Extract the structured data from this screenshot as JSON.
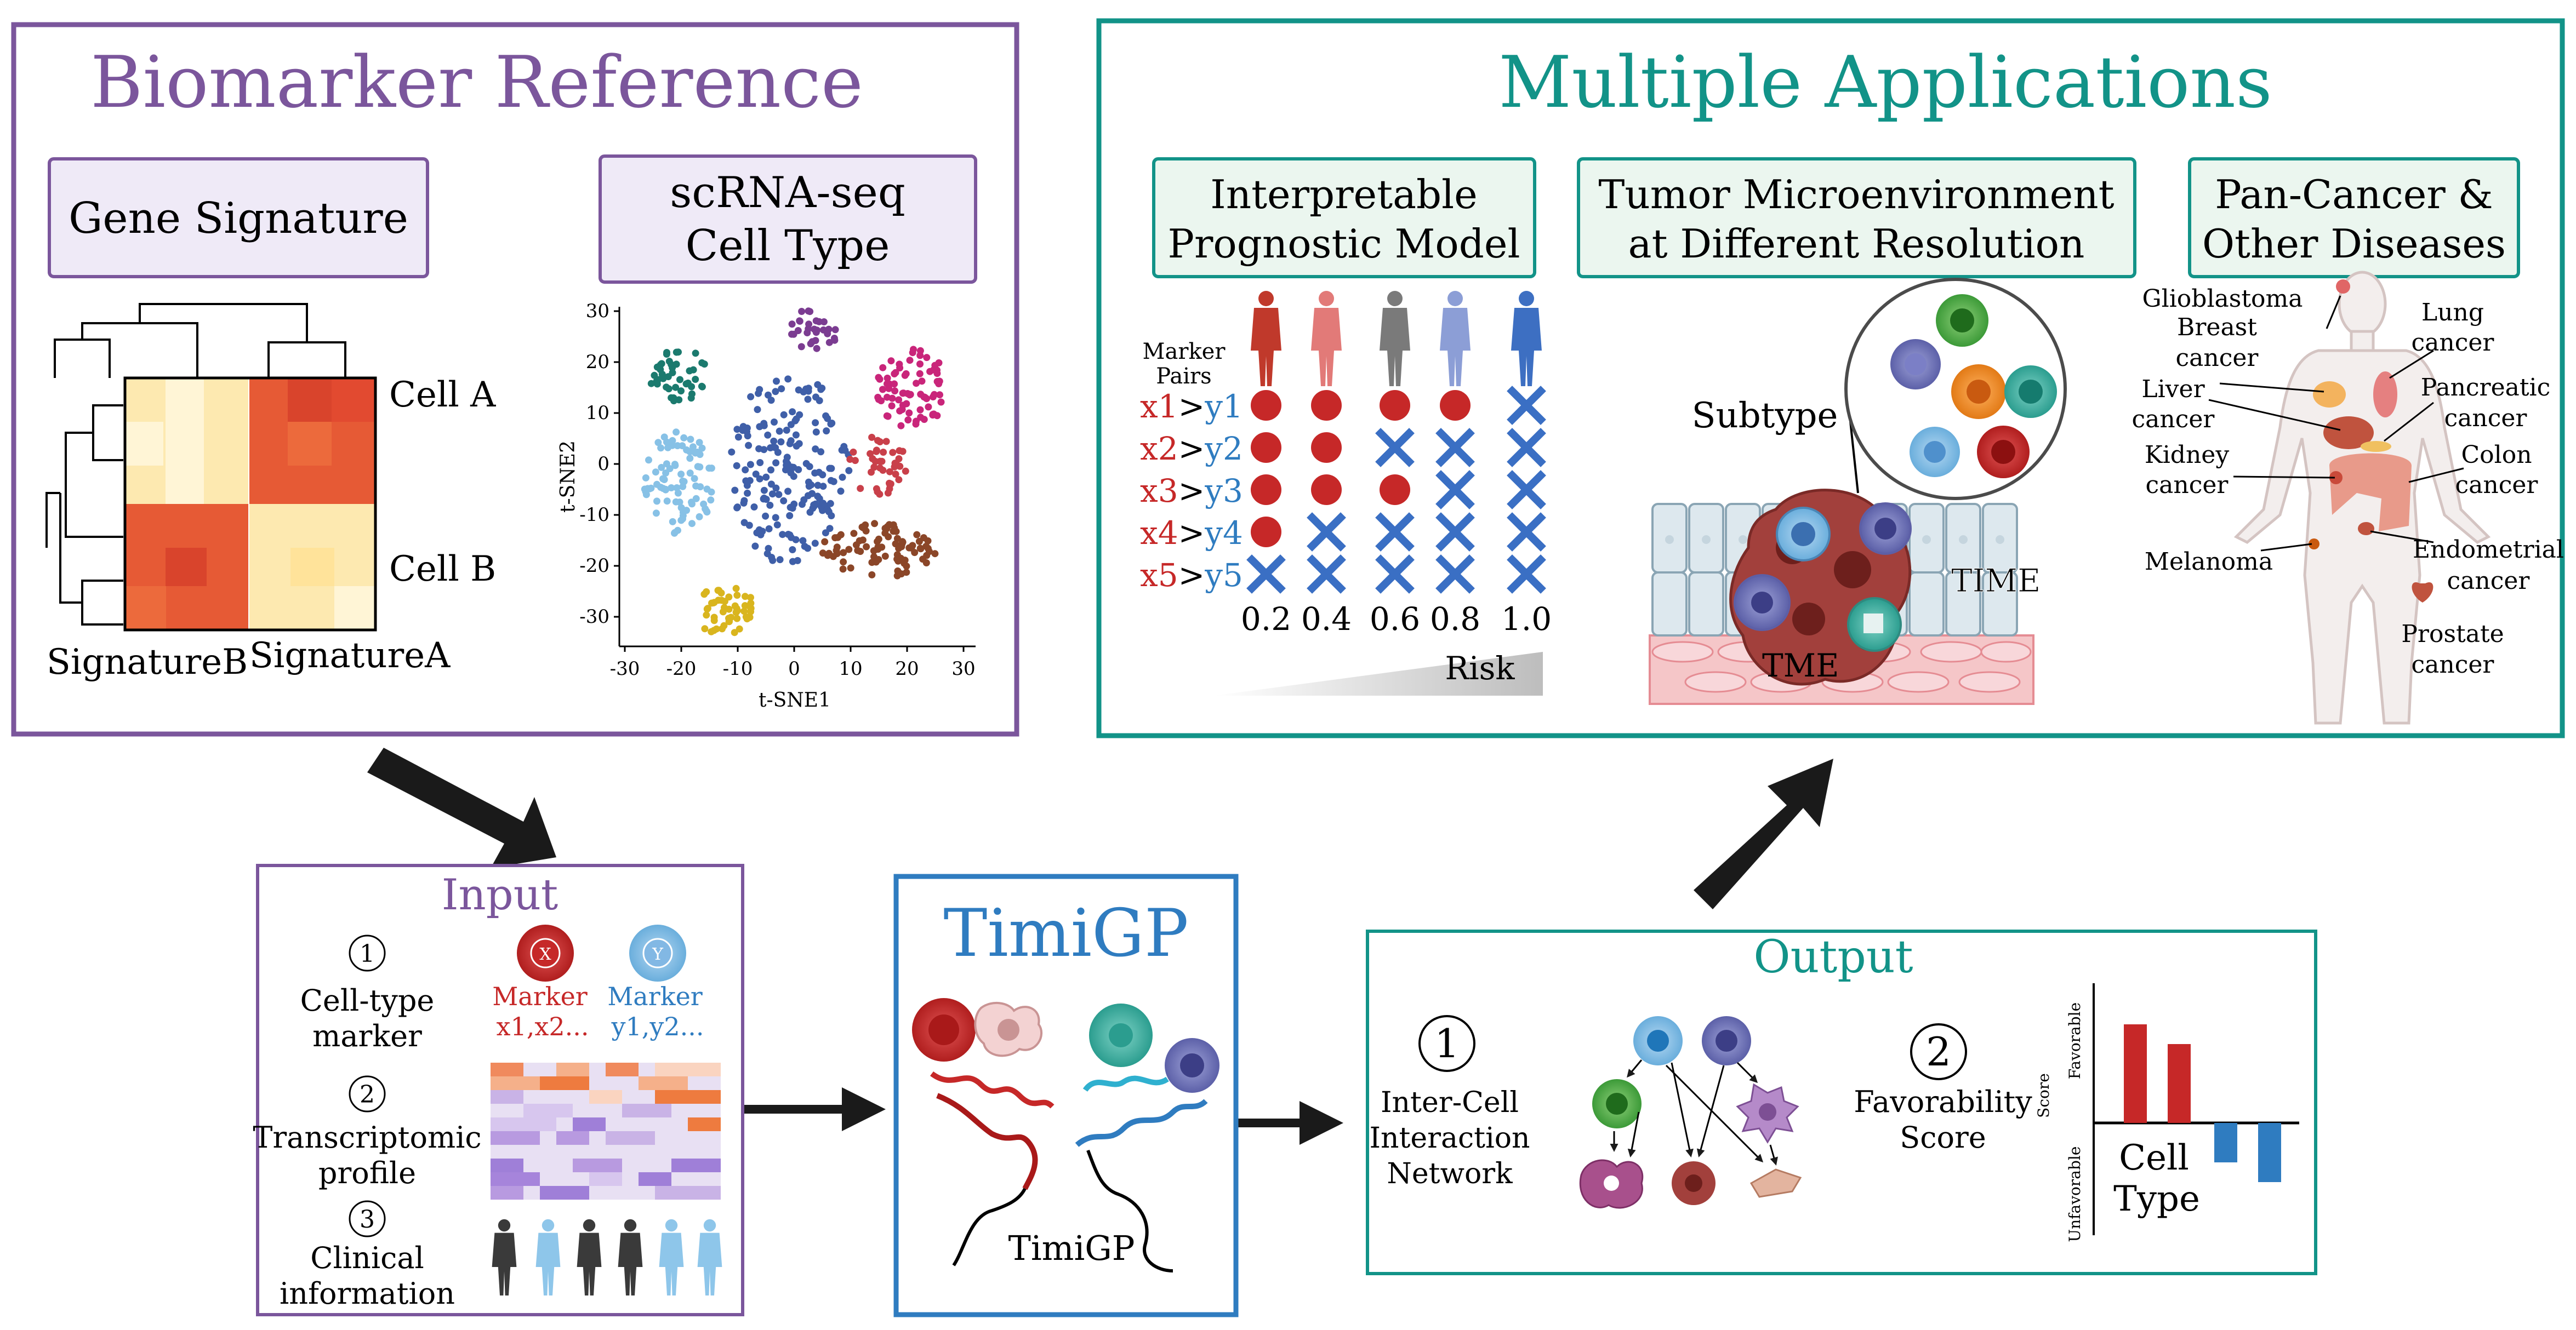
{
  "colors": {
    "purple": "#7b569c",
    "teal": "#129388",
    "blue": "#2f7cc0",
    "red": "#c62828",
    "marker_blue": "#2f7cc0",
    "heat_dark": "#d9442c",
    "heat_mid": "#ee7b3f",
    "heat_light": "#fde9b0"
  },
  "biomarker": {
    "title": "Biomarker Reference",
    "gene_signature_label": "Gene Signature",
    "scrna_label_line1": "scRNA-seq",
    "scrna_label_line2": "Cell Type",
    "heatmap": {
      "row_label_a": "Cell A",
      "row_label_b": "Cell B",
      "col_label_b": "SignatureB",
      "col_label_a": "SignatureA"
    },
    "tsne": {
      "xlabel": "t-SNE1",
      "ylabel": "t-SNE2",
      "xticks": [
        "-30",
        "-20",
        "-10",
        "0",
        "10",
        "20",
        "30"
      ],
      "yticks": [
        "30",
        "20",
        "10",
        "0",
        "-10",
        "-20",
        "-30"
      ]
    }
  },
  "applications": {
    "title": "Multiple Applications",
    "model_label_line1": "Interpretable",
    "model_label_line2": "Prognostic Model",
    "tme_label_line1": "Tumor Microenvironment",
    "tme_label_line2": "at Different Resolution",
    "pancancer_label_line1": "Pan-Cancer &",
    "pancancer_label_line2": "Other Diseases",
    "marker_pairs_line1": "Marker",
    "marker_pairs_line2": "Pairs",
    "pairs": [
      {
        "x": "x1",
        "y": "y1",
        "marks": [
          "dot",
          "dot",
          "dot",
          "dot",
          "cross"
        ]
      },
      {
        "x": "x2",
        "y": "y2",
        "marks": [
          "dot",
          "dot",
          "cross",
          "cross",
          "cross"
        ]
      },
      {
        "x": "x3",
        "y": "y3",
        "marks": [
          "dot",
          "dot",
          "dot",
          "cross",
          "cross"
        ]
      },
      {
        "x": "x4",
        "y": "y4",
        "marks": [
          "dot",
          "cross",
          "cross",
          "cross",
          "cross"
        ]
      },
      {
        "x": "x5",
        "y": "y5",
        "marks": [
          "cross",
          "cross",
          "cross",
          "cross",
          "cross"
        ]
      }
    ],
    "risk_values": [
      "0.2",
      "0.4",
      "0.6",
      "0.8",
      "1.0"
    ],
    "risk_label": "Risk",
    "subtype_label": "Subtype",
    "time_label": "TIME",
    "tme_label": "TME",
    "cancers": {
      "glioblastoma": "Glioblastoma",
      "breast_1": "Breast",
      "breast_2": "cancer",
      "lung_1": "Lung",
      "lung_2": "cancer",
      "liver_1": "Liver",
      "liver_2": "cancer",
      "pancreatic_1": "Pancreatic",
      "pancreatic_2": "cancer",
      "kidney_1": "Kidney",
      "kidney_2": "cancer",
      "colon_1": "Colon",
      "colon_2": "cancer",
      "melanoma": "Melanoma",
      "endometrial_1": "Endometrial",
      "endometrial_2": "cancer",
      "prostate_1": "Prostate",
      "prostate_2": "cancer"
    }
  },
  "input": {
    "title": "Input",
    "step1_num": "1",
    "step1_line1": "Cell-type",
    "step1_line2": "marker",
    "marker_x_badge": "X",
    "marker_y_badge": "Y",
    "marker_x_line1": "Marker",
    "marker_x_line2": "x1,x2...",
    "marker_y_line1": "Marker",
    "marker_y_line2": "y1,y2...",
    "step2_num": "2",
    "step2_line1": "Transcriptomic",
    "step2_line2": "profile",
    "step3_num": "3",
    "step3_line1": "Clinical",
    "step3_line2": "information"
  },
  "timigp": {
    "title": "TimiGP",
    "tag": "TimiGP"
  },
  "output": {
    "title": "Output",
    "step1_num": "1",
    "step1_line1": "Inter-Cell",
    "step1_line2": "Interaction",
    "step1_line3": "Network",
    "step2_num": "2",
    "step2_line1": "Favorability",
    "step2_line2": "Score",
    "bar_chart": {
      "ylabel": "Score",
      "favorable_label": "Favorable",
      "unfavorable_label": "Unfavorable",
      "xlabel_line1": "Cell",
      "xlabel_line2": "Type",
      "favorable_values": [
        1.0,
        0.8
      ],
      "unfavorable_values": [
        -0.4,
        -0.6
      ]
    }
  }
}
